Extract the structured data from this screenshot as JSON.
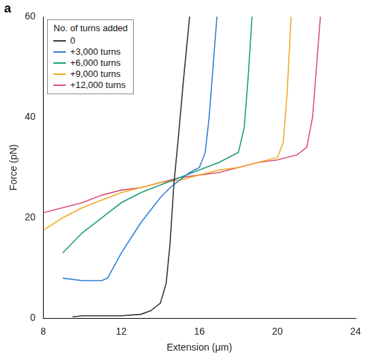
{
  "chart_data": {
    "type": "line",
    "panel_label": "a",
    "x_label": "Extension (μm)",
    "y_label": "Force (pN)",
    "legend_title": "No. of turns added",
    "legend": "upper left",
    "grid": false,
    "xlim": [
      8,
      24
    ],
    "xticks": [
      8,
      12,
      16,
      20,
      24
    ],
    "ylim": [
      0,
      60
    ],
    "yticks": [
      0,
      20,
      40,
      60
    ],
    "series": [
      {
        "name": "0",
        "color": "#333333",
        "x": [
          9.5,
          10,
          11,
          12,
          13,
          13.5,
          14,
          14.3,
          14.5,
          14.7,
          14.9,
          15.2,
          15.5
        ],
        "values": [
          0.3,
          0.5,
          0.5,
          0.5,
          0.8,
          1.5,
          3,
          7,
          15,
          27,
          35,
          48,
          60
        ]
      },
      {
        "name": "+3,000 turns",
        "color": "#2a7fd4",
        "x": [
          9,
          10,
          11,
          11.3,
          12,
          13,
          14,
          14.5,
          15,
          15.5,
          16,
          16.3,
          16.5,
          16.7,
          16.9
        ],
        "values": [
          8,
          7.5,
          7.5,
          8,
          13,
          19,
          24,
          26,
          27.5,
          29,
          30,
          33,
          40,
          50,
          60
        ]
      },
      {
        "name": "+6,000 turns",
        "color": "#1a9a7a",
        "x": [
          9,
          10,
          11,
          12,
          13,
          14,
          15,
          16,
          17,
          18,
          18.3,
          18.5,
          18.7
        ],
        "values": [
          13,
          17,
          20,
          23,
          25,
          26.5,
          28,
          29.5,
          31,
          33,
          38,
          48,
          60
        ]
      },
      {
        "name": "+9,000 turns",
        "color": "#f5a623",
        "x": [
          8,
          9,
          10,
          11,
          12,
          13,
          14,
          15,
          16,
          17,
          18,
          19,
          20,
          20.3,
          20.5,
          20.7
        ],
        "values": [
          17.5,
          20,
          22,
          23.5,
          25,
          26,
          27,
          27.5,
          28.5,
          29.5,
          30,
          31,
          32,
          35,
          45,
          60
        ]
      },
      {
        "name": "+12,000 turns",
        "color": "#d9506e",
        "x": [
          8,
          9,
          10,
          11,
          12,
          13,
          14,
          15,
          16,
          17,
          18,
          19,
          20,
          21,
          21.5,
          21.8,
          22,
          22.2
        ],
        "values": [
          21,
          22,
          23,
          24.5,
          25.5,
          26,
          27,
          28,
          28.5,
          29,
          30,
          31,
          31.5,
          32.5,
          34,
          40,
          50,
          60
        ]
      }
    ]
  }
}
